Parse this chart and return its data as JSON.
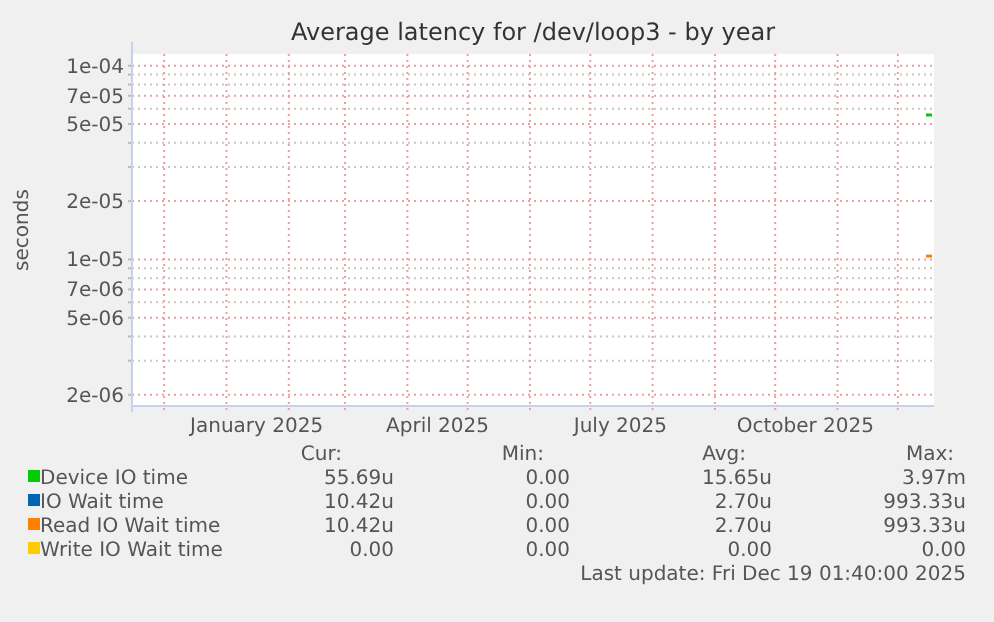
{
  "chart_data": {
    "type": "line",
    "title": "Average latency for /dev/loop3 - by year",
    "ylabel": "seconds",
    "xlim": [
      "2024-11-15",
      "2025-12-19"
    ],
    "xticks": [
      {
        "value": "2024-12-01",
        "label": null
      },
      {
        "value": "2025-01-01",
        "label": null
      },
      {
        "value": "2025-01-16",
        "label": "January 2025"
      },
      {
        "value": "2025-02-01",
        "label": null
      },
      {
        "value": "2025-03-01",
        "label": null
      },
      {
        "value": "2025-04-01",
        "label": null
      },
      {
        "value": "2025-04-16",
        "label": "April 2025"
      },
      {
        "value": "2025-05-01",
        "label": null
      },
      {
        "value": "2025-06-01",
        "label": null
      },
      {
        "value": "2025-07-01",
        "label": null
      },
      {
        "value": "2025-07-16",
        "label": "July 2025"
      },
      {
        "value": "2025-08-01",
        "label": null
      },
      {
        "value": "2025-09-01",
        "label": null
      },
      {
        "value": "2025-10-01",
        "label": null
      },
      {
        "value": "2025-10-16",
        "label": "October 2025"
      },
      {
        "value": "2025-11-01",
        "label": null
      },
      {
        "value": "2025-12-01",
        "label": null
      }
    ],
    "ylim": [
      1.75e-06,
      0.000115
    ],
    "yticks": [
      {
        "value": 2e-06,
        "label": "2e-06"
      },
      {
        "value": 3e-06,
        "label": null
      },
      {
        "value": 4e-06,
        "label": null
      },
      {
        "value": 5e-06,
        "label": "5e-06"
      },
      {
        "value": 6e-06,
        "label": null
      },
      {
        "value": 7e-06,
        "label": "7e-06"
      },
      {
        "value": 8e-06,
        "label": null
      },
      {
        "value": 9e-06,
        "label": null
      },
      {
        "value": 1e-05,
        "label": "1e-05"
      },
      {
        "value": 2e-05,
        "label": "2e-05"
      },
      {
        "value": 3e-05,
        "label": null
      },
      {
        "value": 4e-05,
        "label": null
      },
      {
        "value": 5e-05,
        "label": "5e-05"
      },
      {
        "value": 6e-05,
        "label": null
      },
      {
        "value": 7e-05,
        "label": "7e-05"
      },
      {
        "value": 8e-05,
        "label": null
      },
      {
        "value": 9e-05,
        "label": null
      },
      {
        "value": 0.0001,
        "label": "1e-04"
      }
    ],
    "log": "y",
    "grid": true,
    "legend": "bottom",
    "marker": "none",
    "series": [
      {
        "name": "Device IO time",
        "color": "#00cc00",
        "x": [
          "2025-12-15",
          "2025-12-18"
        ],
        "values": [
          5.57e-05,
          5.57e-05
        ]
      },
      {
        "name": "IO Wait time",
        "color": "#0066b3"
      },
      {
        "name": "Read IO Wait time",
        "color": "#ff8000",
        "x": [
          "2025-12-15",
          "2025-12-18"
        ],
        "values": [
          1.04e-05,
          1.04e-05
        ]
      },
      {
        "name": "Write IO Wait time",
        "color": "#ffcc00"
      }
    ],
    "annotations": [
      "Cur:",
      "Min:",
      "Avg:",
      "Max:",
      "55.69u",
      "0.00",
      "15.65u",
      "3.97m",
      "10.42u",
      "0.00",
      "2.70u",
      "993.33u",
      "10.42u",
      "0.00",
      "2.70u",
      "993.33u",
      "0.00",
      "0.00",
      "0.00",
      "0.00",
      "Last update: Fri Dec 19 01:40:00 2025"
    ]
  }
}
